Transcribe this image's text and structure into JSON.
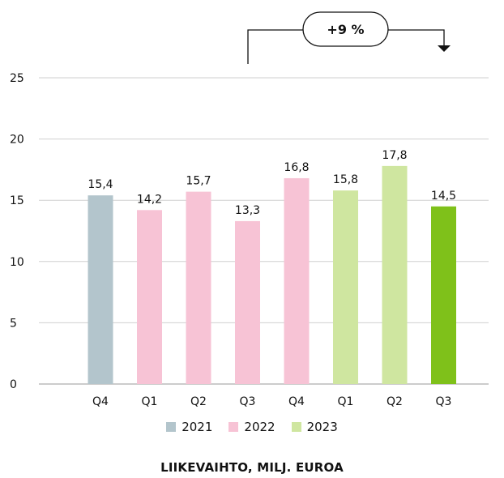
{
  "chart_data": {
    "type": "bar",
    "categories": [
      "Q4",
      "Q1",
      "Q2",
      "Q3",
      "Q4",
      "Q1",
      "Q2",
      "Q3"
    ],
    "values": [
      15.4,
      14.2,
      15.7,
      13.3,
      16.8,
      15.8,
      17.8,
      14.5
    ],
    "value_labels": [
      "15,4",
      "14,2",
      "15,7",
      "13,3",
      "16,8",
      "15,8",
      "17,8",
      "14,5"
    ],
    "bar_colors": [
      "#b3c5cc",
      "#f7c3d5",
      "#f7c3d5",
      "#f7c3d5",
      "#f7c3d5",
      "#cfe6a0",
      "#cfe6a0",
      "#7fc11a"
    ],
    "ylim": [
      0,
      25
    ],
    "yticks": [
      0,
      5,
      10,
      15,
      20,
      25
    ],
    "grid": true,
    "legend": [
      {
        "label": "2021",
        "color": "#b3c5cc"
      },
      {
        "label": "2022",
        "color": "#f7c3d5"
      },
      {
        "label": "2023",
        "color": "#cfe6a0"
      }
    ],
    "legend_placement": "bottom",
    "annotation": "+9 %",
    "xlabel": "LIIKEVAIHTO, MILJ. EUROA"
  }
}
